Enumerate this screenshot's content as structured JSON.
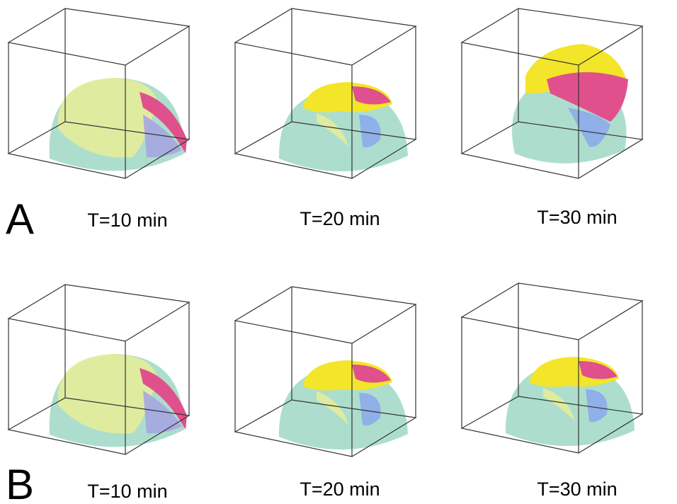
{
  "panels": [
    {
      "label": "A",
      "frames": [
        {
          "caption": "T=10 min"
        },
        {
          "caption": "T=20 min"
        },
        {
          "caption": "T=30 min"
        }
      ]
    },
    {
      "label": "B",
      "frames": [
        {
          "caption": "T=10 min"
        },
        {
          "caption": "T=20 min"
        },
        {
          "caption": "T=30 min"
        }
      ]
    }
  ]
}
